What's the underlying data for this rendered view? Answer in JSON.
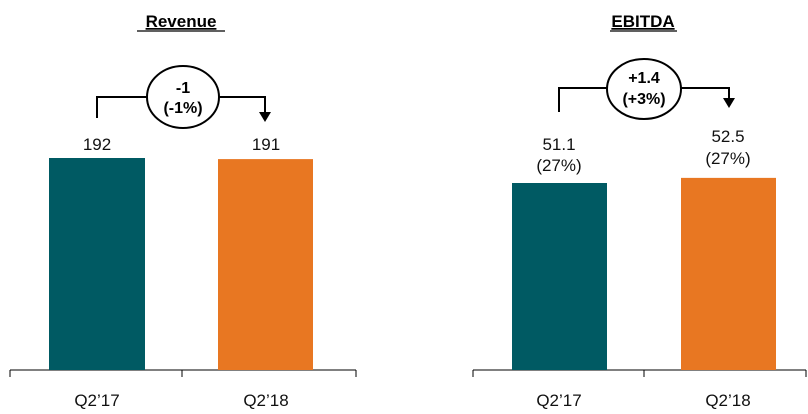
{
  "chart_data": [
    {
      "type": "bar",
      "title": "Revenue",
      "categories": [
        "Q2’17",
        "Q2’18"
      ],
      "values": [
        192,
        191
      ],
      "value_labels": [
        "192",
        "191"
      ],
      "margin_labels": [
        "",
        ""
      ],
      "delta": {
        "abs": "-1",
        "pct": "(-1%)"
      },
      "colors": [
        "#005a63",
        "#e87722"
      ]
    },
    {
      "type": "bar",
      "title": "EBITDA",
      "categories": [
        "Q2’17",
        "Q2’18"
      ],
      "values": [
        51.1,
        52.5
      ],
      "value_labels": [
        "51.1",
        "52.5"
      ],
      "margin_labels": [
        "(27%)",
        "(27%)"
      ],
      "delta": {
        "abs": "+1.4",
        "pct": "(+3%)"
      },
      "colors": [
        "#005a63",
        "#e87722"
      ]
    }
  ]
}
